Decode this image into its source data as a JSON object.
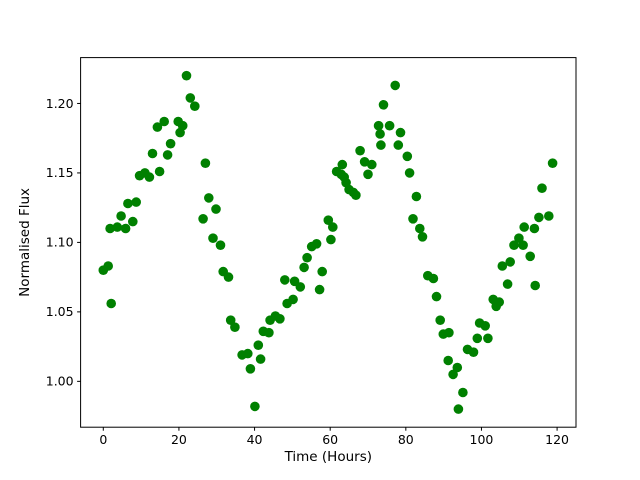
{
  "figure": {
    "background": "#ffffff",
    "frame_color": "#000000"
  },
  "chart_data": {
    "type": "scatter",
    "title": "",
    "xlabel": "Time (Hours)",
    "ylabel": "Normalised Flux",
    "grid": false,
    "legend": false,
    "xlim": [
      -6,
      125
    ],
    "ylim": [
      0.967,
      1.233
    ],
    "xticks": [
      0,
      20,
      40,
      60,
      80,
      100,
      120
    ],
    "yticks": [
      1.0,
      1.05,
      1.1,
      1.15,
      1.2
    ],
    "xtick_labels": [
      "0",
      "20",
      "40",
      "60",
      "80",
      "100",
      "120"
    ],
    "ytick_labels": [
      "1.00",
      "1.05",
      "1.10",
      "1.15",
      "1.20"
    ],
    "series": [
      {
        "name": "normalised-flux",
        "color": "#008000",
        "marker": "circle",
        "marker_radius_px": 4.8,
        "points": [
          [
            0.0,
            1.08
          ],
          [
            1.3,
            1.083
          ],
          [
            1.8,
            1.11
          ],
          [
            2.1,
            1.056
          ],
          [
            3.7,
            1.111
          ],
          [
            4.7,
            1.119
          ],
          [
            5.9,
            1.11
          ],
          [
            6.5,
            1.128
          ],
          [
            7.8,
            1.115
          ],
          [
            8.7,
            1.129
          ],
          [
            9.6,
            1.148
          ],
          [
            11.0,
            1.15
          ],
          [
            12.2,
            1.147
          ],
          [
            13.0,
            1.164
          ],
          [
            14.3,
            1.183
          ],
          [
            14.9,
            1.151
          ],
          [
            16.1,
            1.187
          ],
          [
            17.0,
            1.163
          ],
          [
            17.8,
            1.171
          ],
          [
            19.8,
            1.187
          ],
          [
            20.3,
            1.179
          ],
          [
            21.0,
            1.184
          ],
          [
            22.0,
            1.22
          ],
          [
            23.0,
            1.204
          ],
          [
            24.2,
            1.198
          ],
          [
            26.4,
            1.117
          ],
          [
            27.0,
            1.157
          ],
          [
            27.9,
            1.132
          ],
          [
            29.0,
            1.103
          ],
          [
            29.8,
            1.124
          ],
          [
            31.0,
            1.098
          ],
          [
            31.7,
            1.079
          ],
          [
            33.1,
            1.075
          ],
          [
            33.7,
            1.044
          ],
          [
            34.8,
            1.039
          ],
          [
            36.7,
            1.019
          ],
          [
            38.2,
            1.02
          ],
          [
            38.9,
            1.009
          ],
          [
            40.1,
            0.982
          ],
          [
            41.0,
            1.026
          ],
          [
            41.6,
            1.016
          ],
          [
            42.3,
            1.036
          ],
          [
            43.8,
            1.035
          ],
          [
            44.1,
            1.044
          ],
          [
            45.5,
            1.047
          ],
          [
            46.7,
            1.045
          ],
          [
            48.0,
            1.073
          ],
          [
            48.6,
            1.056
          ],
          [
            50.2,
            1.059
          ],
          [
            50.6,
            1.072
          ],
          [
            52.1,
            1.068
          ],
          [
            53.1,
            1.082
          ],
          [
            53.9,
            1.089
          ],
          [
            55.1,
            1.097
          ],
          [
            56.4,
            1.099
          ],
          [
            57.2,
            1.066
          ],
          [
            57.9,
            1.079
          ],
          [
            59.5,
            1.116
          ],
          [
            60.2,
            1.102
          ],
          [
            60.7,
            1.111
          ],
          [
            61.7,
            1.151
          ],
          [
            62.9,
            1.149
          ],
          [
            63.2,
            1.156
          ],
          [
            63.7,
            1.147
          ],
          [
            64.2,
            1.143
          ],
          [
            65.0,
            1.138
          ],
          [
            66.1,
            1.136
          ],
          [
            66.8,
            1.134
          ],
          [
            67.9,
            1.166
          ],
          [
            69.1,
            1.158
          ],
          [
            70.0,
            1.149
          ],
          [
            71.0,
            1.156
          ],
          [
            72.8,
            1.184
          ],
          [
            73.2,
            1.178
          ],
          [
            73.4,
            1.17
          ],
          [
            74.1,
            1.199
          ],
          [
            75.7,
            1.184
          ],
          [
            77.2,
            1.213
          ],
          [
            78.0,
            1.17
          ],
          [
            78.6,
            1.179
          ],
          [
            80.4,
            1.162
          ],
          [
            81.0,
            1.15
          ],
          [
            81.9,
            1.117
          ],
          [
            82.8,
            1.133
          ],
          [
            83.7,
            1.11
          ],
          [
            84.4,
            1.104
          ],
          [
            85.8,
            1.076
          ],
          [
            87.3,
            1.074
          ],
          [
            88.1,
            1.061
          ],
          [
            89.1,
            1.044
          ],
          [
            89.9,
            1.034
          ],
          [
            91.2,
            1.015
          ],
          [
            91.4,
            1.035
          ],
          [
            92.5,
            1.005
          ],
          [
            93.6,
            1.01
          ],
          [
            93.9,
            0.98
          ],
          [
            95.1,
            0.992
          ],
          [
            96.3,
            1.023
          ],
          [
            97.9,
            1.021
          ],
          [
            98.9,
            1.031
          ],
          [
            99.5,
            1.042
          ],
          [
            101.0,
            1.04
          ],
          [
            101.7,
            1.031
          ],
          [
            103.1,
            1.059
          ],
          [
            103.9,
            1.054
          ],
          [
            104.7,
            1.057
          ],
          [
            105.5,
            1.083
          ],
          [
            106.9,
            1.07
          ],
          [
            107.6,
            1.086
          ],
          [
            108.6,
            1.098
          ],
          [
            109.9,
            1.103
          ],
          [
            111.0,
            1.098
          ],
          [
            111.3,
            1.111
          ],
          [
            112.9,
            1.09
          ],
          [
            114.0,
            1.11
          ],
          [
            114.2,
            1.069
          ],
          [
            115.2,
            1.118
          ],
          [
            116.0,
            1.139
          ],
          [
            117.8,
            1.119
          ],
          [
            118.8,
            1.157
          ]
        ]
      }
    ]
  }
}
